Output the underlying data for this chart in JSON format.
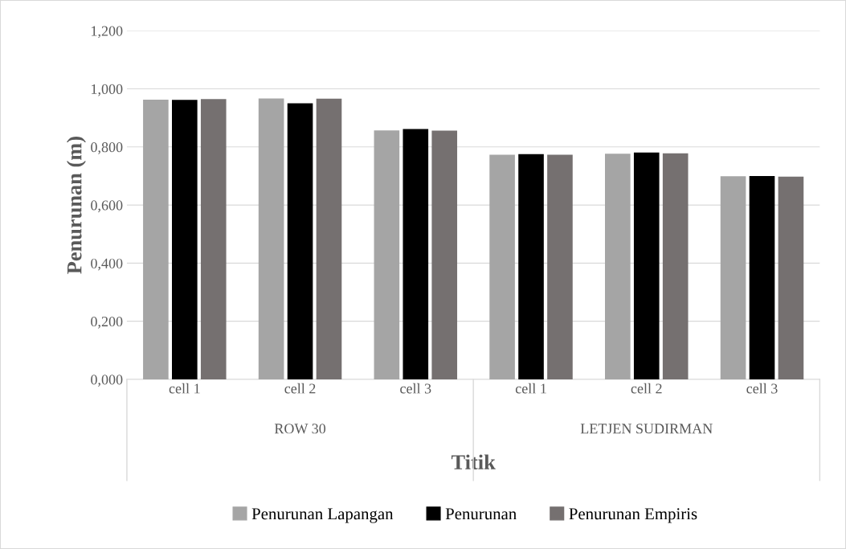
{
  "chart_data": {
    "type": "bar",
    "xlabel": "Titik",
    "ylabel": "Penurunan (m)",
    "categories": [
      "cell 1",
      "cell 2",
      "cell 3",
      "cell 1",
      "cell 2",
      "cell 3"
    ],
    "series": [
      {
        "name": "Penurunan Lapangan",
        "color": "#a5a5a5",
        "values": [
          0.963,
          0.967,
          0.857,
          0.773,
          0.777,
          0.699
        ]
      },
      {
        "name": "Penurunan",
        "color": "#000000",
        "values": [
          0.962,
          0.95,
          0.862,
          0.775,
          0.781,
          0.7
        ]
      },
      {
        "name": "Penurunan Empiris",
        "color": "#757070",
        "values": [
          0.965,
          0.966,
          0.856,
          0.773,
          0.778,
          0.698
        ]
      }
    ],
    "annotations": [
      "ROW 30",
      "LETJEN SUDIRMAN"
    ],
    "ylim": [
      0,
      1.2
    ],
    "yticks": [
      {
        "value": 0,
        "label": "0,000"
      },
      {
        "value": 0.2,
        "label": "0,200"
      },
      {
        "value": 0.4,
        "label": "0,400"
      },
      {
        "value": 0.6,
        "label": "0,600"
      },
      {
        "value": 0.8,
        "label": "0,800"
      },
      {
        "value": 1.0,
        "label": "1,000"
      },
      {
        "value": 1.2,
        "label": "1,200"
      }
    ],
    "grid": "y",
    "legend": "bottom"
  }
}
